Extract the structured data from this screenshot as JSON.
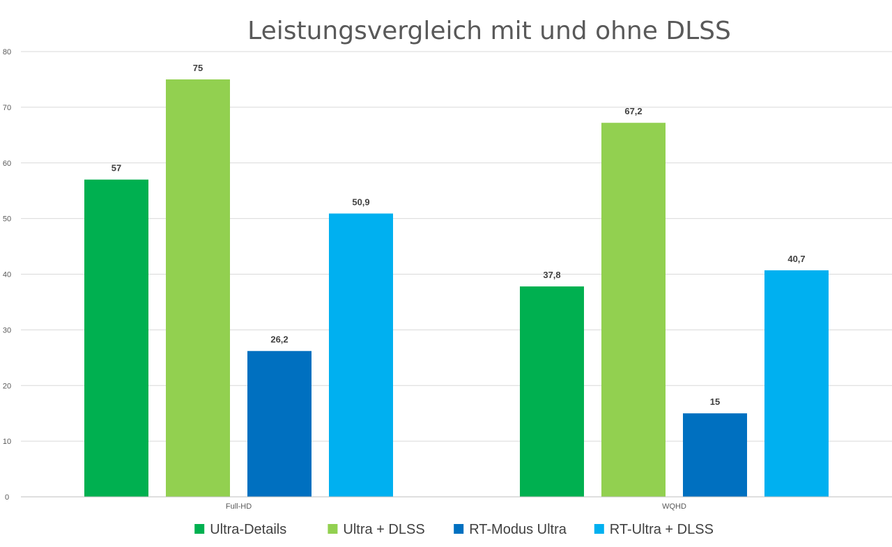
{
  "chart_data": {
    "type": "bar",
    "title": "Leistungsvergleich mit und ohne DLSS",
    "xlabel": "",
    "ylabel": "",
    "categories": [
      "Full-HD",
      "WQHD"
    ],
    "series": [
      {
        "name": "Ultra-Details",
        "color": "#00b050",
        "values": [
          57,
          37.8
        ],
        "labels": [
          "57",
          "37,8"
        ]
      },
      {
        "name": "Ultra + DLSS",
        "color": "#92d050",
        "values": [
          75,
          67.2
        ],
        "labels": [
          "75",
          "67,2"
        ]
      },
      {
        "name": "RT-Modus Ultra",
        "color": "#0070c0",
        "values": [
          26.2,
          15
        ],
        "labels": [
          "26,2",
          "15"
        ]
      },
      {
        "name": "RT-Ultra + DLSS",
        "color": "#00b0f0",
        "values": [
          50.9,
          40.7
        ],
        "labels": [
          "50,9",
          "40,7"
        ]
      }
    ],
    "ylim": [
      0,
      80
    ],
    "yticks": [
      0,
      10,
      20,
      30,
      40,
      50,
      60,
      70,
      80
    ],
    "grid": true,
    "legend_position": "bottom"
  }
}
